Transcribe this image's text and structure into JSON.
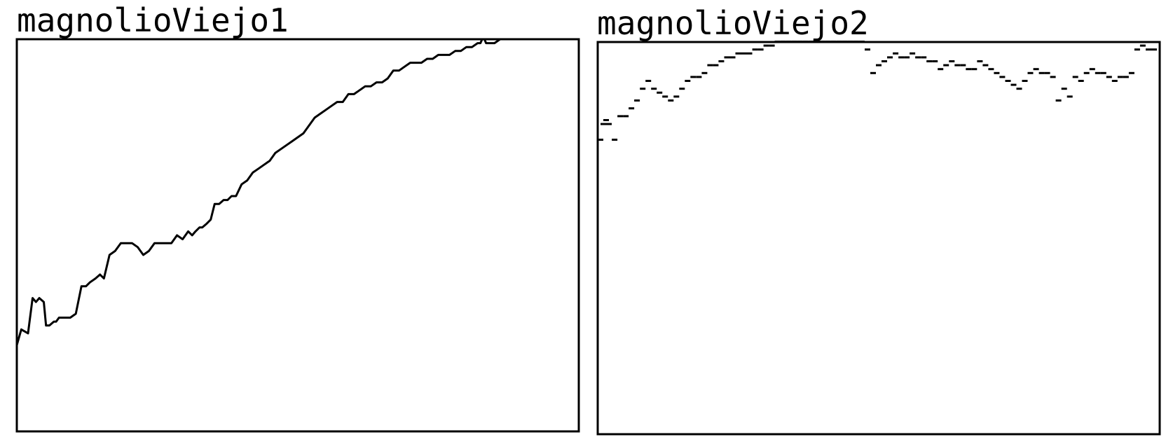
{
  "panels": [
    {
      "title": "magnolioViejo1"
    },
    {
      "title": "magnolioViejo2"
    }
  ],
  "chart_data": [
    {
      "type": "line",
      "title": "magnolioViejo1",
      "xlabel": "",
      "ylabel": "",
      "axes_visible": false,
      "grid": false,
      "legend": "none",
      "line_color": "#000000",
      "xlim": [
        0,
        1
      ],
      "ylim": [
        0,
        1
      ],
      "series": [
        {
          "x": [
            0.0,
            0.008,
            0.02,
            0.028,
            0.034,
            0.04,
            0.048,
            0.052,
            0.058,
            0.066,
            0.07,
            0.075,
            0.085,
            0.095,
            0.105,
            0.115,
            0.123,
            0.13,
            0.14,
            0.148,
            0.155,
            0.165,
            0.175,
            0.185,
            0.195,
            0.205,
            0.215,
            0.225,
            0.235,
            0.245,
            0.26,
            0.275,
            0.285,
            0.295,
            0.305,
            0.312,
            0.318,
            0.325,
            0.33,
            0.338,
            0.345,
            0.352,
            0.36,
            0.368,
            0.375,
            0.382,
            0.39,
            0.4,
            0.41,
            0.42,
            0.43,
            0.44,
            0.45,
            0.46,
            0.47,
            0.48,
            0.49,
            0.5,
            0.51,
            0.52,
            0.53,
            0.54,
            0.55,
            0.56,
            0.57,
            0.58,
            0.59,
            0.6,
            0.61,
            0.62,
            0.63,
            0.64,
            0.65,
            0.66,
            0.67,
            0.68,
            0.69,
            0.7,
            0.71,
            0.72,
            0.73,
            0.74,
            0.75,
            0.76,
            0.77,
            0.78,
            0.79,
            0.8,
            0.81,
            0.82,
            0.825,
            0.828,
            0.832,
            0.835,
            0.84,
            0.85,
            0.86,
            0.87,
            0.88,
            0.89,
            0.9,
            0.91,
            0.92,
            0.93,
            0.94,
            0.95,
            0.96,
            0.965,
            0.97,
            0.975,
            0.98,
            0.985,
            0.99,
            1.0
          ],
          "y": [
            0.22,
            0.26,
            0.25,
            0.34,
            0.33,
            0.34,
            0.33,
            0.27,
            0.27,
            0.28,
            0.28,
            0.29,
            0.29,
            0.29,
            0.3,
            0.37,
            0.37,
            0.38,
            0.39,
            0.4,
            0.39,
            0.45,
            0.46,
            0.48,
            0.48,
            0.48,
            0.47,
            0.45,
            0.46,
            0.48,
            0.48,
            0.48,
            0.5,
            0.49,
            0.51,
            0.5,
            0.51,
            0.52,
            0.52,
            0.53,
            0.54,
            0.58,
            0.58,
            0.59,
            0.59,
            0.6,
            0.6,
            0.63,
            0.64,
            0.66,
            0.67,
            0.68,
            0.69,
            0.71,
            0.72,
            0.73,
            0.74,
            0.75,
            0.76,
            0.78,
            0.8,
            0.81,
            0.82,
            0.83,
            0.84,
            0.84,
            0.86,
            0.86,
            0.87,
            0.88,
            0.88,
            0.89,
            0.89,
            0.9,
            0.92,
            0.92,
            0.93,
            0.94,
            0.94,
            0.94,
            0.95,
            0.95,
            0.96,
            0.96,
            0.96,
            0.97,
            0.97,
            0.98,
            0.98,
            0.99,
            0.99,
            1.0,
            1.01,
            0.99,
            0.99,
            0.99,
            1.0,
            1.01,
            1.0,
            1.01,
            1.0,
            1.01,
            1.0,
            1.01,
            1.0,
            1.01,
            1.0,
            1.02,
            1.01,
            1.02,
            1.03,
            1.03,
            1.03,
            1.04
          ]
        }
      ]
    },
    {
      "type": "scatter",
      "title": "magnolioViejo2",
      "xlabel": "",
      "ylabel": "",
      "axes_visible": false,
      "grid": false,
      "legend": "none",
      "line_color": "#000000",
      "xlim": [
        0,
        1
      ],
      "ylim": [
        0,
        1
      ],
      "series": [
        {
          "x": [
            0.005,
            0.01,
            0.015,
            0.02,
            0.03,
            0.04,
            0.05,
            0.06,
            0.07,
            0.08,
            0.09,
            0.1,
            0.11,
            0.12,
            0.13,
            0.14,
            0.15,
            0.16,
            0.17,
            0.18,
            0.19,
            0.2,
            0.21,
            0.22,
            0.23,
            0.24,
            0.25,
            0.26,
            0.27,
            0.28,
            0.29,
            0.3,
            0.31,
            0.32,
            0.33,
            0.34,
            0.35,
            0.36,
            0.37,
            0.38,
            0.39,
            0.4,
            0.41,
            0.42,
            0.43,
            0.44,
            0.45,
            0.46,
            0.47,
            0.48,
            0.49,
            0.5,
            0.51,
            0.52,
            0.53,
            0.54,
            0.55,
            0.56,
            0.57,
            0.58,
            0.59,
            0.6,
            0.61,
            0.62,
            0.63,
            0.64,
            0.65,
            0.66,
            0.67,
            0.68,
            0.69,
            0.7,
            0.71,
            0.72,
            0.73,
            0.74,
            0.75,
            0.76,
            0.77,
            0.78,
            0.79,
            0.8,
            0.81,
            0.82,
            0.83,
            0.84,
            0.85,
            0.86,
            0.87,
            0.88,
            0.89,
            0.9,
            0.91,
            0.92,
            0.93,
            0.94,
            0.95,
            0.96,
            0.97,
            0.98,
            0.99
          ],
          "y": [
            0.75,
            0.79,
            0.8,
            0.79,
            0.75,
            0.81,
            0.81,
            0.83,
            0.85,
            0.88,
            0.9,
            0.88,
            0.87,
            0.86,
            0.85,
            0.86,
            0.88,
            0.9,
            0.91,
            0.91,
            0.92,
            0.94,
            0.94,
            0.95,
            0.96,
            0.96,
            0.97,
            0.97,
            0.97,
            0.98,
            0.98,
            0.99,
            0.99,
            1.0,
            1.0,
            1.0,
            1.0,
            1.0,
            1.0,
            1.0,
            1.0,
            1.0,
            1.0,
            1.0,
            1.0,
            1.0,
            1.0,
            1.0,
            1.0,
            0.98,
            0.92,
            0.94,
            0.95,
            0.96,
            0.97,
            0.96,
            0.96,
            0.97,
            0.96,
            0.96,
            0.95,
            0.95,
            0.93,
            0.94,
            0.95,
            0.94,
            0.94,
            0.93,
            0.93,
            0.95,
            0.94,
            0.93,
            0.92,
            0.91,
            0.9,
            0.89,
            0.88,
            0.9,
            0.92,
            0.93,
            0.92,
            0.92,
            0.91,
            0.85,
            0.88,
            0.86,
            0.91,
            0.9,
            0.92,
            0.93,
            0.92,
            0.92,
            0.91,
            0.9,
            0.91,
            0.91,
            0.92,
            0.98,
            0.99,
            0.98,
            0.98
          ]
        }
      ]
    }
  ]
}
